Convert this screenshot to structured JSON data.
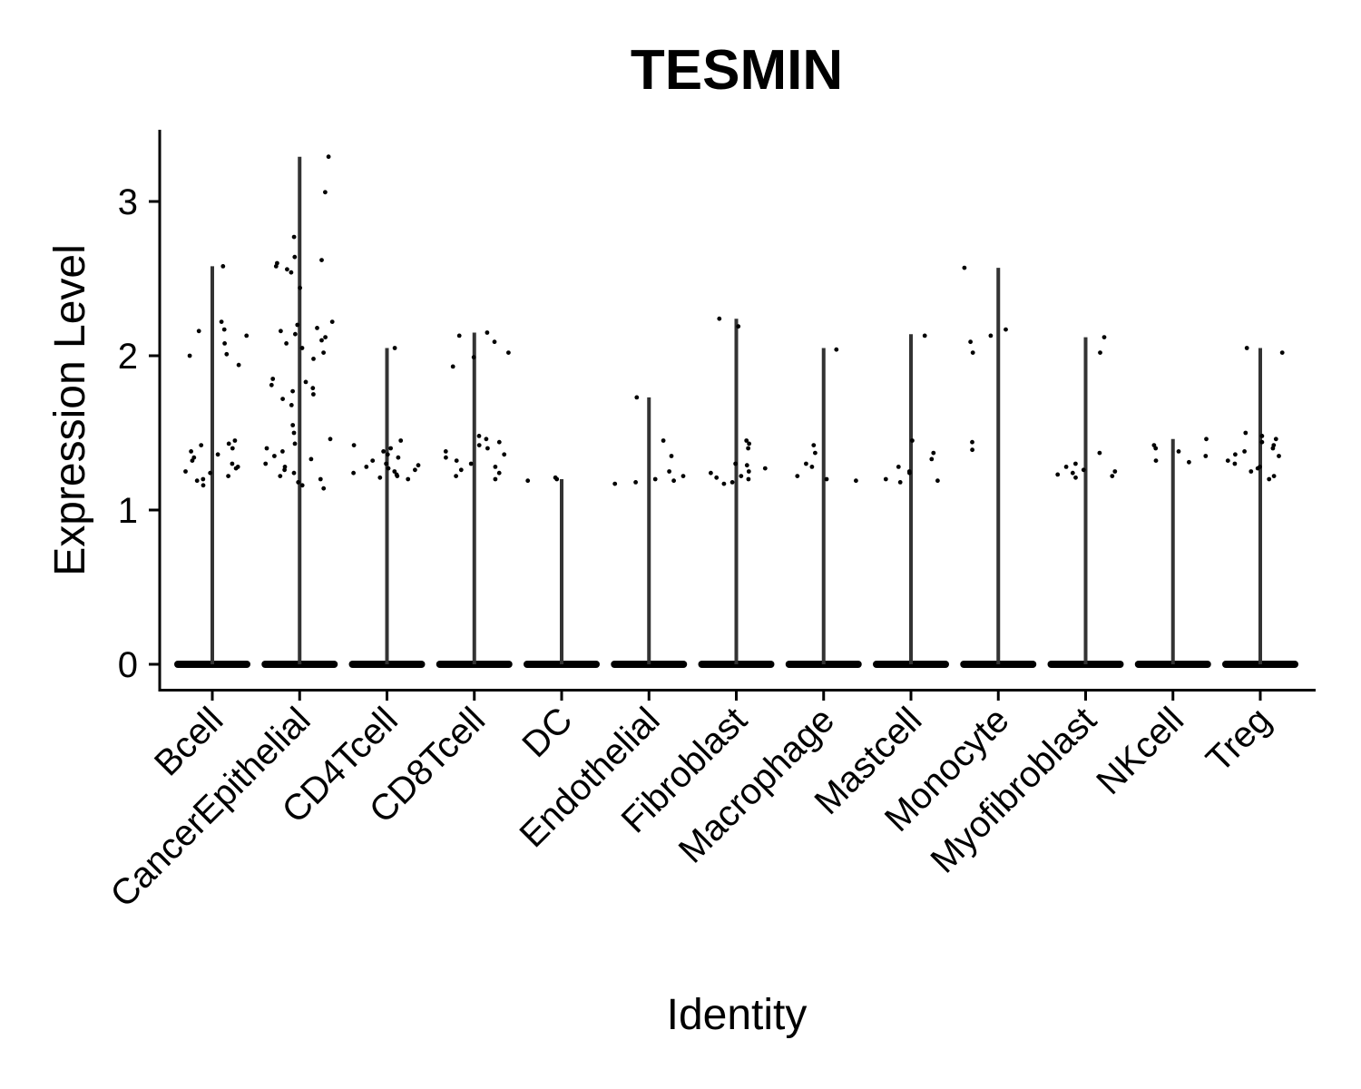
{
  "chart_data": {
    "type": "violin",
    "title": "TESMIN",
    "xlabel": "Identity",
    "ylabel": "Expression Level",
    "ylim": [
      -0.17,
      3.45
    ],
    "yticks": [
      0,
      1,
      2,
      3
    ],
    "grid": false,
    "legend": "none",
    "categories": [
      "Bcell",
      "CancerEpithelial",
      "CD4Tcell",
      "CD8Tcell",
      "DC",
      "Endothelial",
      "Fibroblast",
      "Macrophage",
      "Mastcell",
      "Monocyte",
      "Myofibroblast",
      "NKcell",
      "Treg"
    ],
    "violin_max": [
      2.58,
      3.29,
      2.05,
      2.15,
      1.2,
      1.73,
      2.24,
      2.05,
      2.14,
      2.57,
      2.12,
      1.46,
      2.05
    ],
    "points": [
      {
        "category": "Bcell",
        "y": [
          2.58,
          2.16,
          2.22,
          2.13,
          2.08,
          2.17,
          2.0,
          1.94,
          2.01,
          1.45,
          1.43,
          1.42,
          1.4,
          1.38,
          1.36,
          1.34,
          1.32,
          1.3,
          1.28,
          1.27,
          1.25,
          1.24,
          1.22,
          1.2,
          1.19,
          1.16
        ]
      },
      {
        "category": "CancerEpithelial",
        "y": [
          3.29,
          3.06,
          2.77,
          2.64,
          2.62,
          2.6,
          2.58,
          2.56,
          2.54,
          2.44,
          2.22,
          2.2,
          2.18,
          2.16,
          2.14,
          2.12,
          2.1,
          2.08,
          2.05,
          2.02,
          1.98,
          1.85,
          1.83,
          1.81,
          1.79,
          1.77,
          1.75,
          1.72,
          1.68,
          1.55,
          1.5,
          1.46,
          1.43,
          1.4,
          1.38,
          1.35,
          1.33,
          1.3,
          1.28,
          1.26,
          1.24,
          1.22,
          1.2,
          1.18,
          1.16,
          1.14
        ]
      },
      {
        "category": "CD4Tcell",
        "y": [
          2.05,
          1.45,
          1.42,
          1.4,
          1.38,
          1.36,
          1.34,
          1.32,
          1.3,
          1.29,
          1.28,
          1.27,
          1.26,
          1.25,
          1.24,
          1.23,
          1.22,
          1.21,
          1.2
        ]
      },
      {
        "category": "CD8Tcell",
        "y": [
          2.15,
          2.13,
          2.09,
          2.02,
          1.99,
          1.93,
          1.48,
          1.46,
          1.44,
          1.42,
          1.4,
          1.38,
          1.36,
          1.34,
          1.32,
          1.3,
          1.28,
          1.26,
          1.24,
          1.22,
          1.2
        ]
      },
      {
        "category": "DC",
        "y": [
          1.21,
          1.2,
          1.19
        ]
      },
      {
        "category": "Endothelial",
        "y": [
          1.73,
          1.45,
          1.35,
          1.25,
          1.22,
          1.2,
          1.19,
          1.18,
          1.17
        ]
      },
      {
        "category": "Fibroblast",
        "y": [
          2.24,
          2.19,
          1.45,
          1.43,
          1.4,
          1.3,
          1.29,
          1.27,
          1.25,
          1.24,
          1.22,
          1.21,
          1.2,
          1.18,
          1.17
        ]
      },
      {
        "category": "Macrophage",
        "y": [
          2.04,
          1.42,
          1.37,
          1.3,
          1.28,
          1.22,
          1.2,
          1.19
        ]
      },
      {
        "category": "Mastcell",
        "y": [
          2.13,
          1.45,
          1.37,
          1.33,
          1.28,
          1.25,
          1.24,
          1.2,
          1.19,
          1.18
        ]
      },
      {
        "category": "Monocyte",
        "y": [
          2.57,
          2.17,
          2.13,
          2.09,
          2.02,
          1.44,
          1.39
        ]
      },
      {
        "category": "Myofibroblast",
        "y": [
          2.12,
          2.02,
          1.37,
          1.3,
          1.28,
          1.26,
          1.25,
          1.24,
          1.23,
          1.22,
          1.21
        ]
      },
      {
        "category": "NKcell",
        "y": [
          1.46,
          1.42,
          1.4,
          1.38,
          1.35,
          1.32,
          1.31
        ]
      },
      {
        "category": "Treg",
        "y": [
          2.05,
          2.02,
          1.5,
          1.48,
          1.46,
          1.44,
          1.42,
          1.4,
          1.38,
          1.36,
          1.35,
          1.32,
          1.3,
          1.28,
          1.27,
          1.25,
          1.22,
          1.2
        ]
      }
    ],
    "zero_value": 0
  }
}
